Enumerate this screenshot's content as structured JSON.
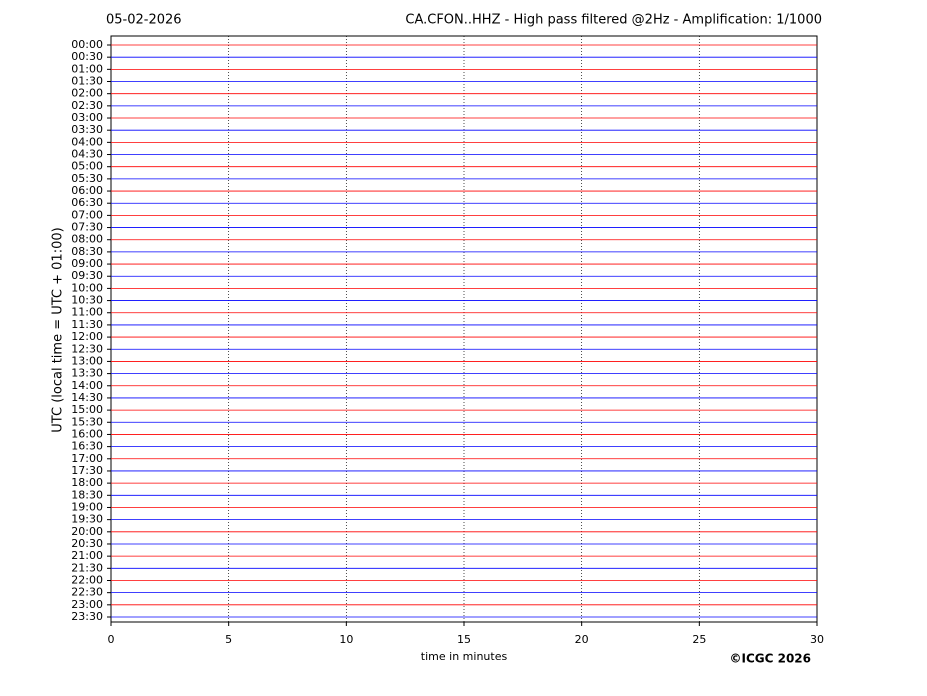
{
  "chart_data": {
    "type": "helicorder",
    "date": "05-02-2026",
    "title": "CA.CFON..HHZ - High pass filtered @2Hz - Amplification: 1/1000",
    "y_label": "UTC (local time = UTC + 01:00)",
    "x_label": "time in minutes",
    "copyright": "©ICGC 2026",
    "categories": [
      "00:00",
      "00:30",
      "01:00",
      "01:30",
      "02:00",
      "02:30",
      "03:00",
      "03:30",
      "04:00",
      "04:30",
      "05:00",
      "05:30",
      "06:00",
      "06:30",
      "07:00",
      "07:30",
      "08:00",
      "08:30",
      "09:00",
      "09:30",
      "10:00",
      "10:30",
      "11:00",
      "11:30",
      "12:00",
      "12:30",
      "13:00",
      "13:30",
      "14:00",
      "14:30",
      "15:00",
      "15:30",
      "16:00",
      "16:30",
      "17:00",
      "17:30",
      "18:00",
      "18:30",
      "19:00",
      "19:30",
      "20:00",
      "20:30",
      "21:00",
      "21:30",
      "22:00",
      "22:30",
      "23:00",
      "23:30"
    ],
    "colors": [
      "#ff0000",
      "#0000ff"
    ],
    "xlim": [
      0,
      30
    ],
    "xticks": [
      0,
      5,
      10,
      15,
      20,
      25,
      30
    ],
    "grid": true
  }
}
